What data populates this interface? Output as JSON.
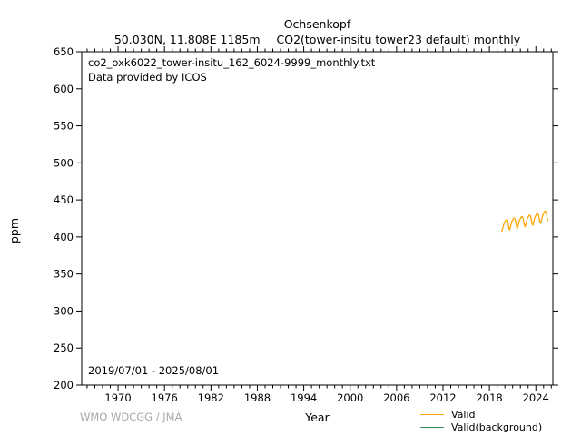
{
  "header": {
    "title": "Ochsenkopf",
    "location": "50.030N, 11.808E 1185m",
    "parameter": "CO2(tower-insitu tower23 default) monthly"
  },
  "annotations": {
    "filename": "co2_oxk6022_tower-insitu_162_6024-9999_monthly.txt",
    "provider": "Data provided by ICOS",
    "date_range": "2019/07/01 - 2025/08/01"
  },
  "axes": {
    "x_label": "Year",
    "y_label": "ppm"
  },
  "footer": {
    "credit": "WMO WDCGG / JMA",
    "color": "#a8a8a8"
  },
  "legend": {
    "items": [
      {
        "label": "Valid",
        "color": "#ffa500"
      },
      {
        "label": "Valid(background)",
        "color": "#2e8b57"
      }
    ]
  },
  "chart_data": {
    "type": "line",
    "title": "Ochsenkopf",
    "xlabel": "Year",
    "ylabel": "ppm",
    "xlim": [
      1965.3,
      2026.2
    ],
    "ylim": [
      200,
      650
    ],
    "x_major_ticks": [
      1970,
      1976,
      1982,
      1988,
      1994,
      2000,
      2006,
      2012,
      2018,
      2024
    ],
    "x_minor_step": 1,
    "y_major_ticks": [
      200,
      250,
      300,
      350,
      400,
      450,
      500,
      550,
      600,
      650
    ],
    "grid": false,
    "frame": true,
    "legend_position": "bottom-right",
    "series": [
      {
        "name": "Valid",
        "color": "#ffa500",
        "points": [
          [
            2019.542,
            409.0
          ],
          [
            2019.625,
            408.2
          ],
          [
            2019.708,
            411.5
          ],
          [
            2019.792,
            415.0
          ],
          [
            2019.875,
            417.5
          ],
          [
            2019.958,
            419.5
          ],
          [
            2020.042,
            421.5
          ],
          [
            2020.125,
            422.5
          ],
          [
            2020.208,
            423.0
          ],
          [
            2020.292,
            423.5
          ],
          [
            2020.375,
            421.0
          ],
          [
            2020.458,
            415.5
          ],
          [
            2020.542,
            411.0
          ],
          [
            2020.625,
            410.0
          ],
          [
            2020.708,
            413.0
          ],
          [
            2020.792,
            417.0
          ],
          [
            2020.875,
            420.5
          ],
          [
            2020.958,
            422.0
          ],
          [
            2021.042,
            423.5
          ],
          [
            2021.125,
            425.0
          ],
          [
            2021.208,
            425.5
          ],
          [
            2021.292,
            424.5
          ],
          [
            2021.375,
            422.0
          ],
          [
            2021.458,
            417.0
          ],
          [
            2021.542,
            413.0
          ],
          [
            2021.625,
            412.0
          ],
          [
            2021.708,
            415.0
          ],
          [
            2021.792,
            419.0
          ],
          [
            2021.875,
            422.5
          ],
          [
            2021.958,
            424.0
          ],
          [
            2022.042,
            425.5
          ],
          [
            2022.125,
            427.0
          ],
          [
            2022.208,
            427.5
          ],
          [
            2022.292,
            426.5
          ],
          [
            2022.375,
            424.0
          ],
          [
            2022.458,
            419.0
          ],
          [
            2022.542,
            415.0
          ],
          [
            2022.625,
            414.0
          ],
          [
            2022.708,
            417.0
          ],
          [
            2022.792,
            421.0
          ],
          [
            2022.875,
            424.5
          ],
          [
            2022.958,
            426.0
          ],
          [
            2023.042,
            427.5
          ],
          [
            2023.125,
            429.0
          ],
          [
            2023.208,
            429.5
          ],
          [
            2023.292,
            428.5
          ],
          [
            2023.375,
            426.0
          ],
          [
            2023.458,
            421.0
          ],
          [
            2023.542,
            417.0
          ],
          [
            2023.625,
            416.0
          ],
          [
            2023.708,
            419.0
          ],
          [
            2023.792,
            423.0
          ],
          [
            2023.875,
            426.5
          ],
          [
            2023.958,
            428.0
          ],
          [
            2024.042,
            430.0
          ],
          [
            2024.125,
            431.5
          ],
          [
            2024.208,
            432.0
          ],
          [
            2024.292,
            431.0
          ],
          [
            2024.375,
            428.5
          ],
          [
            2024.458,
            423.5
          ],
          [
            2024.542,
            419.5
          ],
          [
            2024.625,
            418.5
          ],
          [
            2024.708,
            421.5
          ],
          [
            2024.792,
            425.5
          ],
          [
            2024.875,
            429.0
          ],
          [
            2024.958,
            430.5
          ],
          [
            2025.042,
            432.5
          ],
          [
            2025.125,
            434.0
          ],
          [
            2025.208,
            435.0
          ],
          [
            2025.292,
            434.0
          ],
          [
            2025.375,
            431.0
          ],
          [
            2025.458,
            426.0
          ],
          [
            2025.542,
            421.5
          ]
        ]
      },
      {
        "name": "Valid(background)",
        "color": "#2e8b57",
        "points": []
      }
    ]
  }
}
